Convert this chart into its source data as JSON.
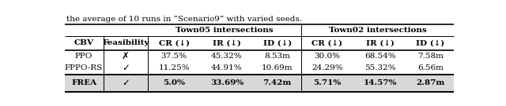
{
  "caption": "the average of 10 runs in “Scenario9” with varied seeds.",
  "rows": [
    [
      "PPO",
      "✗",
      "37.5%",
      "45.32%",
      "8.53m",
      "30.0%",
      "68.54%",
      "7.58m"
    ],
    [
      "FPPO-RS",
      "✓",
      "11.25%",
      "44.91%",
      "10.69m",
      "24.29%",
      "55.32%",
      "6.56m"
    ],
    [
      "FREA",
      "✓",
      "5.0%",
      "33.69%",
      "7.42m",
      "5.71%",
      "14.57%",
      "2.87m"
    ]
  ],
  "background_color": "#ffffff",
  "frea_bg": "#d8d8d8",
  "font_size": 7.5,
  "lw_thick": 1.2,
  "lw_thin": 0.7
}
